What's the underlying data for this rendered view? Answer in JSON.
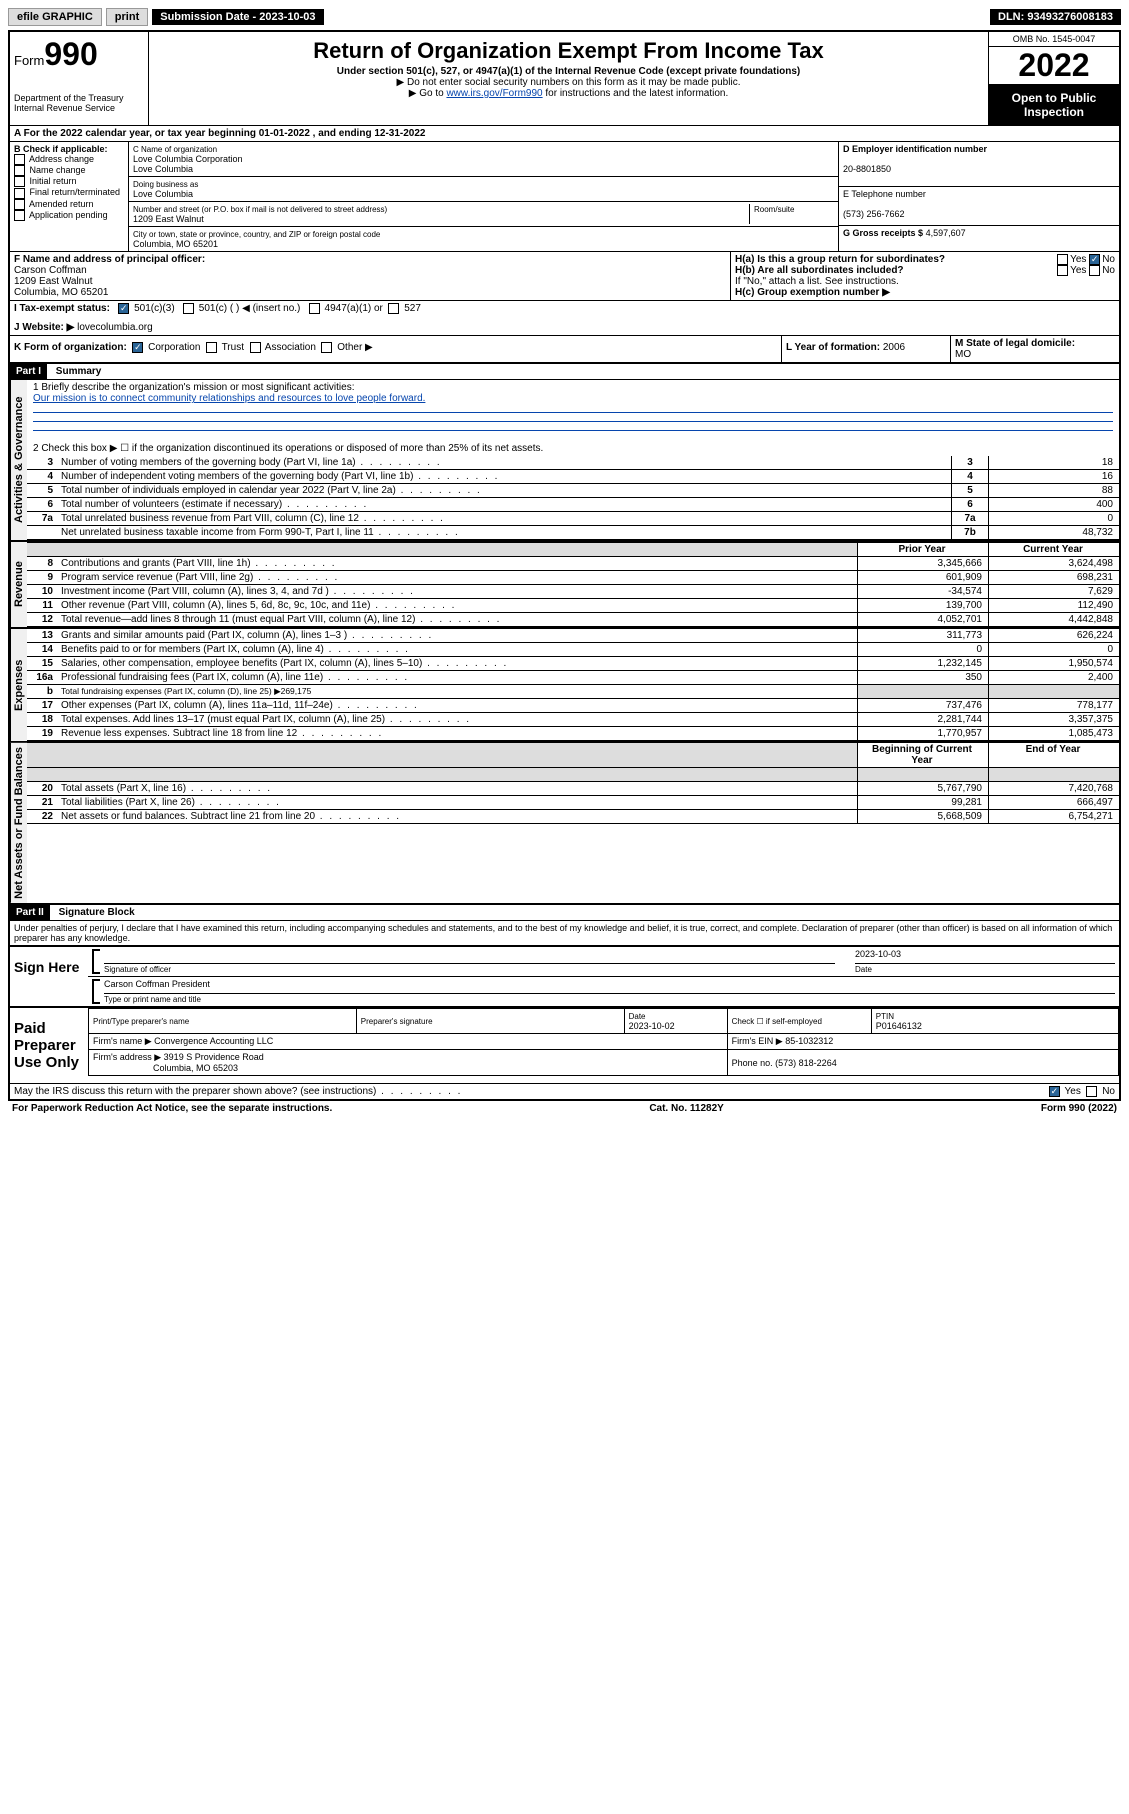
{
  "topbar": {
    "efile": "efile GRAPHIC",
    "print": "print",
    "sub_date_label": "Submission Date - 2023-10-03",
    "dln": "DLN: 93493276008183"
  },
  "header": {
    "form_word": "Form",
    "form_num": "990",
    "dept": "Department of the Treasury\nInternal Revenue Service",
    "title": "Return of Organization Exempt From Income Tax",
    "sub1": "Under section 501(c), 527, or 4947(a)(1) of the Internal Revenue Code (except private foundations)",
    "sub2": "▶ Do not enter social security numbers on this form as it may be made public.",
    "sub3_pre": "▶ Go to ",
    "sub3_link": "www.irs.gov/Form990",
    "sub3_post": " for instructions and the latest information.",
    "omb": "OMB No. 1545-0047",
    "year": "2022",
    "open_pub": "Open to Public Inspection"
  },
  "a_line": {
    "pre": "A For the 2022 calendar year, or tax year beginning ",
    "begin": "01-01-2022",
    "mid": " , and ending ",
    "end": "12-31-2022"
  },
  "b": {
    "header": "B Check if applicable:",
    "items": [
      "Address change",
      "Name change",
      "Initial return",
      "Final return/terminated",
      "Amended return",
      "Application pending"
    ]
  },
  "c": {
    "name_label": "C Name of organization",
    "name": "Love Columbia Corporation",
    "name2": "Love Columbia",
    "dba_label": "Doing business as",
    "dba": "Love Columbia",
    "street_label": "Number and street (or P.O. box if mail is not delivered to street address)",
    "room_label": "Room/suite",
    "street": "1209 East Walnut",
    "city_label": "City or town, state or province, country, and ZIP or foreign postal code",
    "city": "Columbia, MO  65201"
  },
  "d": {
    "label": "D Employer identification number",
    "val": "20-8801850"
  },
  "e": {
    "label": "E Telephone number",
    "val": "(573) 256-7662"
  },
  "g": {
    "label": "G Gross receipts $",
    "val": "4,597,607"
  },
  "f": {
    "label": "F Name and address of principal officer:",
    "name": "Carson Coffman",
    "addr1": "1209 East Walnut",
    "addr2": "Columbia, MO  65201"
  },
  "h": {
    "a_label": "H(a)  Is this a group return for subordinates?",
    "yes": "Yes",
    "no": "No",
    "b_label": "H(b)  Are all subordinates included?",
    "b_note": "If \"No,\" attach a list. See instructions.",
    "c_label": "H(c)  Group exemption number ▶"
  },
  "i": {
    "label": "I    Tax-exempt status:",
    "opt1": "501(c)(3)",
    "opt2": "501(c) (   ) ◀ (insert no.)",
    "opt3": "4947(a)(1) or",
    "opt4": "527"
  },
  "j": {
    "label": "J    Website: ▶",
    "val": "lovecolumbia.org"
  },
  "k": {
    "label": "K Form of organization:",
    "opts": [
      "Corporation",
      "Trust",
      "Association",
      "Other ▶"
    ]
  },
  "l": {
    "label": "L Year of formation:",
    "val": "2006"
  },
  "m": {
    "label": "M State of legal domicile:",
    "val": "MO"
  },
  "part1": {
    "header": "Part I",
    "title": "Summary",
    "q1_label": "1   Briefly describe the organization's mission or most significant activities:",
    "q1_val": "Our mission is to connect community relationships and resources to love people forward.",
    "q2": "2   Check this box ▶ ☐  if the organization discontinued its operations or disposed of more than 25% of its net assets.",
    "v_activities": "Activities & Governance",
    "v_revenue": "Revenue",
    "v_expenses": "Expenses",
    "v_netassets": "Net Assets or Fund Balances"
  },
  "gov_rows": [
    {
      "n": "3",
      "t": "Number of voting members of the governing body (Part VI, line 1a)",
      "k": "3",
      "v": "18"
    },
    {
      "n": "4",
      "t": "Number of independent voting members of the governing body (Part VI, line 1b)",
      "k": "4",
      "v": "16"
    },
    {
      "n": "5",
      "t": "Total number of individuals employed in calendar year 2022 (Part V, line 2a)",
      "k": "5",
      "v": "88"
    },
    {
      "n": "6",
      "t": "Total number of volunteers (estimate if necessary)",
      "k": "6",
      "v": "400"
    },
    {
      "n": "7a",
      "t": "Total unrelated business revenue from Part VIII, column (C), line 12",
      "k": "7a",
      "v": "0"
    },
    {
      "n": "",
      "t": "Net unrelated business taxable income from Form 990-T, Part I, line 11",
      "k": "7b",
      "v": "48,732"
    }
  ],
  "col_headers": {
    "prior": "Prior Year",
    "current": "Current Year"
  },
  "rev_rows": [
    {
      "n": "8",
      "t": "Contributions and grants (Part VIII, line 1h)",
      "p": "3,345,666",
      "c": "3,624,498"
    },
    {
      "n": "9",
      "t": "Program service revenue (Part VIII, line 2g)",
      "p": "601,909",
      "c": "698,231"
    },
    {
      "n": "10",
      "t": "Investment income (Part VIII, column (A), lines 3, 4, and 7d )",
      "p": "-34,574",
      "c": "7,629"
    },
    {
      "n": "11",
      "t": "Other revenue (Part VIII, column (A), lines 5, 6d, 8c, 9c, 10c, and 11e)",
      "p": "139,700",
      "c": "112,490"
    },
    {
      "n": "12",
      "t": "Total revenue—add lines 8 through 11 (must equal Part VIII, column (A), line 12)",
      "p": "4,052,701",
      "c": "4,442,848"
    }
  ],
  "exp_rows": [
    {
      "n": "13",
      "t": "Grants and similar amounts paid (Part IX, column (A), lines 1–3 )",
      "p": "311,773",
      "c": "626,224"
    },
    {
      "n": "14",
      "t": "Benefits paid to or for members (Part IX, column (A), line 4)",
      "p": "0",
      "c": "0"
    },
    {
      "n": "15",
      "t": "Salaries, other compensation, employee benefits (Part IX, column (A), lines 5–10)",
      "p": "1,232,145",
      "c": "1,950,574"
    },
    {
      "n": "16a",
      "t": "Professional fundraising fees (Part IX, column (A), line 11e)",
      "p": "350",
      "c": "2,400"
    }
  ],
  "exp_b": {
    "n": "b",
    "t": "Total fundraising expenses (Part IX, column (D), line 25) ▶269,175"
  },
  "exp_rows2": [
    {
      "n": "17",
      "t": "Other expenses (Part IX, column (A), lines 11a–11d, 11f–24e)",
      "p": "737,476",
      "c": "778,177"
    },
    {
      "n": "18",
      "t": "Total expenses. Add lines 13–17 (must equal Part IX, column (A), line 25)",
      "p": "2,281,744",
      "c": "3,357,375"
    },
    {
      "n": "19",
      "t": "Revenue less expenses. Subtract line 18 from line 12",
      "p": "1,770,957",
      "c": "1,085,473"
    }
  ],
  "na_headers": {
    "begin": "Beginning of Current Year",
    "end": "End of Year"
  },
  "na_rows": [
    {
      "n": "20",
      "t": "Total assets (Part X, line 16)",
      "p": "5,767,790",
      "c": "7,420,768"
    },
    {
      "n": "21",
      "t": "Total liabilities (Part X, line 26)",
      "p": "99,281",
      "c": "666,497"
    },
    {
      "n": "22",
      "t": "Net assets or fund balances. Subtract line 21 from line 20",
      "p": "5,668,509",
      "c": "6,754,271"
    }
  ],
  "part2": {
    "header": "Part II",
    "title": "Signature Block",
    "decl": "Under penalties of perjury, I declare that I have examined this return, including accompanying schedules and statements, and to the best of my knowledge and belief, it is true, correct, and complete. Declaration of preparer (other than officer) is based on all information of which preparer has any knowledge."
  },
  "sign": {
    "here": "Sign Here",
    "sig_label": "Signature of officer",
    "date_label": "Date",
    "date": "2023-10-03",
    "name": "Carson Coffman  President",
    "name_label": "Type or print name and title"
  },
  "prep": {
    "here": "Paid Preparer Use Only",
    "c1": "Print/Type preparer's name",
    "c2": "Preparer's signature",
    "c3": "Date",
    "c3v": "2023-10-02",
    "c4": "Check ☐ if self-employed",
    "c5": "PTIN",
    "c5v": "P01646132",
    "firm_name_l": "Firm's name    ▶",
    "firm_name": "Convergence Accounting LLC",
    "firm_ein_l": "Firm's EIN ▶",
    "firm_ein": "85-1032312",
    "firm_addr_l": "Firm's address ▶",
    "firm_addr1": "3919 S Providence Road",
    "firm_addr2": "Columbia, MO  65203",
    "phone_l": "Phone no.",
    "phone": "(573) 818-2264"
  },
  "discuss": {
    "q": "May the IRS discuss this return with the preparer shown above? (see instructions)",
    "yes": "Yes",
    "no": "No"
  },
  "footer": {
    "left": "For Paperwork Reduction Act Notice, see the separate instructions.",
    "mid": "Cat. No. 11282Y",
    "right": "Form 990 (2022)"
  }
}
